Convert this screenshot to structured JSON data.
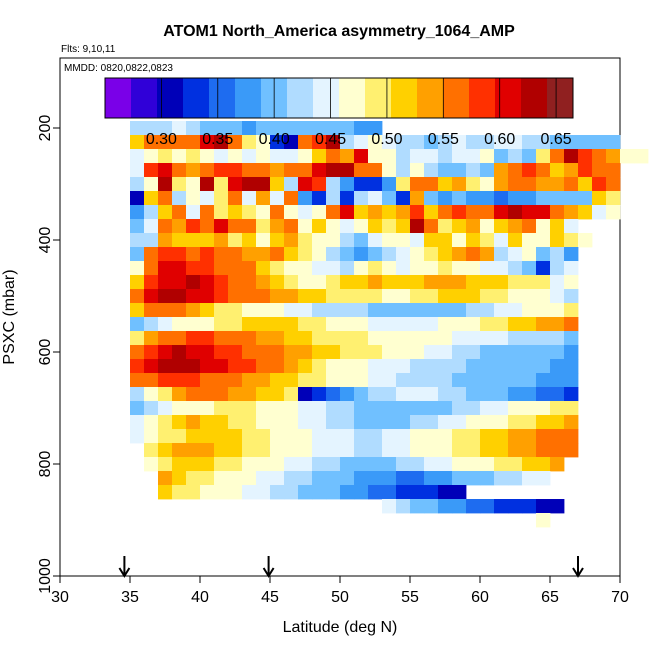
{
  "chart_data": {
    "type": "heatmap",
    "title": "ATOM1 North_America asymmetry_1064_AMP",
    "flights_label": "Flts: 9,10,11",
    "dates_label": "MMDD: 0820,0822,0823",
    "xlabel": "Latitude (deg N)",
    "ylabel": "PSXC (mbar)",
    "xlim": [
      30,
      70
    ],
    "ylim": [
      1000,
      75
    ],
    "x_ticks": [
      30,
      35,
      40,
      45,
      50,
      55,
      60,
      65,
      70
    ],
    "y_ticks": [
      200,
      400,
      600,
      800,
      1000
    ],
    "x_tick_labels": [
      "30",
      "35",
      "40",
      "45",
      "50",
      "55",
      "60",
      "65",
      "70"
    ],
    "y_tick_labels": [
      "200",
      "400",
      "600",
      "800",
      "1000"
    ],
    "colorbar": {
      "min": 0.25,
      "max": 0.665,
      "ticks": [
        0.3,
        0.35,
        0.4,
        0.45,
        0.5,
        0.55,
        0.6,
        0.65
      ],
      "tick_labels": [
        "0.30",
        "0.35",
        "0.40",
        "0.45",
        "0.50",
        "0.55",
        "0.60",
        "0.65"
      ],
      "colors": [
        "#7a00e8",
        "#3000d8",
        "#0000b8",
        "#0030e0",
        "#1e6cf0",
        "#3a9af8",
        "#70c0ff",
        "#b0dcff",
        "#e4f4ff",
        "#ffffd0",
        "#fff070",
        "#ffd000",
        "#ffa000",
        "#ff7000",
        "#ff3000",
        "#e00000",
        "#b00000",
        "#902020"
      ]
    },
    "arrows_latitude": [
      34.6,
      44.9,
      67.0
    ],
    "lat_bin_width": 1,
    "pressure_bin_height": 25,
    "grid": [
      {
        "p": 200,
        "lat0": 35,
        "v": [
          0.43,
          0.43,
          0.42,
          0.44,
          0.42,
          0.4,
          0.39,
          0.4,
          0.38,
          0.41,
          0.4,
          0.39,
          0.41,
          0.4,
          0.4,
          0.39,
          0.38,
          0.37
        ]
      },
      {
        "p": 225,
        "lat0": 35,
        "v": [
          0.52,
          0.55,
          0.56,
          0.55,
          0.57,
          0.6,
          0.62,
          0.57,
          0.5,
          0.48,
          0.33,
          0.31,
          0.55,
          0.58,
          0.62,
          0.43,
          0.44,
          0.46,
          0.44,
          0.42,
          0.42,
          0.4,
          0.43,
          0.44,
          0.43,
          0.42,
          0.44,
          0.45,
          0.43,
          0.42,
          0.41,
          0.4,
          0.4,
          0.39,
          0.39
        ]
      },
      {
        "p": 250,
        "lat0": 35,
        "v": [
          0.45,
          0.47,
          0.5,
          0.46,
          0.5,
          0.48,
          0.44,
          0.46,
          0.44,
          0.48,
          0.44,
          0.45,
          0.48,
          0.52,
          0.55,
          0.53,
          0.6,
          0.46,
          0.46,
          0.43,
          0.44,
          0.45,
          0.43,
          0.44,
          0.45,
          0.46,
          0.4,
          0.43,
          0.4,
          0.49,
          0.56,
          0.62,
          0.58,
          0.56,
          0.54,
          0.47,
          0.46
        ]
      },
      {
        "p": 275,
        "lat0": 35,
        "v": [
          0.44,
          0.58,
          0.61,
          0.55,
          0.53,
          0.56,
          0.58,
          0.58,
          0.55,
          0.56,
          0.54,
          0.56,
          0.55,
          0.6,
          0.62,
          0.63,
          0.57,
          0.55,
          0.47,
          0.43,
          0.46,
          0.42,
          0.4,
          0.41,
          0.42,
          0.41,
          0.54,
          0.56,
          0.58,
          0.55,
          0.52,
          0.54,
          0.58,
          0.56,
          0.56
        ]
      },
      {
        "p": 300,
        "lat0": 35,
        "v": [
          0.43,
          0.46,
          0.62,
          0.5,
          0.47,
          0.62,
          0.5,
          0.6,
          0.63,
          0.64,
          0.52,
          0.42,
          0.6,
          0.58,
          0.43,
          0.38,
          0.32,
          0.34,
          0.38,
          0.5,
          0.55,
          0.55,
          0.51,
          0.54,
          0.5,
          0.48,
          0.53,
          0.55,
          0.56,
          0.54,
          0.53,
          0.55,
          0.52,
          0.58,
          0.55
        ]
      },
      {
        "p": 325,
        "lat0": 35,
        "v": [
          0.3,
          0.52,
          0.55,
          0.42,
          0.48,
          0.44,
          0.5,
          0.56,
          0.44,
          0.53,
          0.44,
          0.55,
          0.38,
          0.33,
          0.43,
          0.34,
          0.42,
          0.45,
          0.4,
          0.33,
          0.53,
          0.4,
          0.38,
          0.39,
          0.37,
          0.38,
          0.35,
          0.38,
          0.38,
          0.39,
          0.41,
          0.4,
          0.4,
          0.52,
          0.5
        ]
      },
      {
        "p": 350,
        "lat0": 35,
        "v": [
          0.37,
          0.43,
          0.51,
          0.56,
          0.44,
          0.55,
          0.5,
          0.51,
          0.5,
          0.48,
          0.55,
          0.48,
          0.45,
          0.47,
          0.55,
          0.6,
          0.52,
          0.53,
          0.52,
          0.54,
          0.58,
          0.52,
          0.56,
          0.58,
          0.56,
          0.57,
          0.6,
          0.62,
          0.61,
          0.6,
          0.56,
          0.54,
          0.52,
          0.45,
          0.46
        ]
      },
      {
        "p": 375,
        "lat0": 35,
        "v": [
          0.4,
          0.44,
          0.56,
          0.53,
          0.58,
          0.56,
          0.6,
          0.56,
          0.55,
          0.5,
          0.53,
          0.56,
          0.47,
          0.51,
          0.46,
          0.44,
          0.46,
          0.52,
          0.5,
          0.51,
          0.62,
          0.55,
          0.5,
          0.51,
          0.54,
          0.48,
          0.52,
          0.53,
          0.55,
          0.48,
          0.52,
          0.44
        ]
      },
      {
        "p": 400,
        "lat0": 35,
        "v": [
          0.42,
          0.43,
          0.54,
          0.52,
          0.51,
          0.52,
          0.53,
          0.5,
          0.52,
          0.48,
          0.51,
          0.53,
          0.5,
          0.48,
          0.46,
          0.42,
          0.4,
          0.44,
          0.46,
          0.48,
          0.45,
          0.52,
          0.51,
          0.48,
          0.51,
          0.5,
          0.44,
          0.52,
          0.47,
          0.46,
          0.51,
          0.5,
          0.46
        ]
      },
      {
        "p": 425,
        "lat0": 35,
        "v": [
          0.4,
          0.55,
          0.58,
          0.59,
          0.56,
          0.58,
          0.57,
          0.55,
          0.53,
          0.54,
          0.56,
          0.52,
          0.5,
          0.47,
          0.43,
          0.41,
          0.38,
          0.4,
          0.42,
          0.44,
          0.48,
          0.5,
          0.52,
          0.53,
          0.55,
          0.54,
          0.42,
          0.44,
          0.46,
          0.4,
          0.42,
          0.38
        ]
      },
      {
        "p": 450,
        "lat0": 35,
        "v": [
          0.48,
          0.56,
          0.6,
          0.6,
          0.59,
          0.58,
          0.57,
          0.56,
          0.55,
          0.52,
          0.5,
          0.48,
          0.46,
          0.45,
          0.44,
          0.43,
          0.47,
          0.5,
          0.48,
          0.44,
          0.46,
          0.48,
          0.49,
          0.48,
          0.47,
          0.45,
          0.44,
          0.42,
          0.4,
          0.32,
          0.42,
          0.44
        ]
      },
      {
        "p": 475,
        "lat0": 35,
        "v": [
          0.52,
          0.58,
          0.6,
          0.61,
          0.62,
          0.6,
          0.59,
          0.57,
          0.55,
          0.53,
          0.51,
          0.49,
          0.47,
          0.48,
          0.5,
          0.51,
          0.52,
          0.53,
          0.52,
          0.51,
          0.52,
          0.53,
          0.54,
          0.53,
          0.52,
          0.52,
          0.51,
          0.5,
          0.5,
          0.49,
          0.45,
          0.47
        ]
      },
      {
        "p": 500,
        "lat0": 35,
        "v": [
          0.55,
          0.6,
          0.63,
          0.62,
          0.61,
          0.6,
          0.58,
          0.57,
          0.56,
          0.55,
          0.54,
          0.53,
          0.52,
          0.51,
          0.5,
          0.5,
          0.49,
          0.49,
          0.48,
          0.48,
          0.49,
          0.5,
          0.51,
          0.52,
          0.51,
          0.5,
          0.49,
          0.48,
          0.47,
          0.46,
          0.44,
          0.42
        ]
      },
      {
        "p": 525,
        "lat0": 35,
        "v": [
          0.52,
          0.55,
          0.56,
          0.55,
          0.54,
          0.52,
          0.5,
          0.49,
          0.48,
          0.47,
          0.46,
          0.45,
          0.44,
          0.43,
          0.43,
          0.42,
          0.42,
          0.41,
          0.41,
          0.4,
          0.4,
          0.39,
          0.4,
          0.41,
          0.42,
          0.43,
          0.44,
          0.45,
          0.46,
          0.47,
          0.48,
          0.49
        ]
      },
      {
        "p": 550,
        "lat0": 35,
        "v": [
          0.41,
          0.43,
          0.45,
          0.46,
          0.47,
          0.48,
          0.49,
          0.5,
          0.51,
          0.52,
          0.52,
          0.51,
          0.5,
          0.49,
          0.48,
          0.47,
          0.46,
          0.45,
          0.44,
          0.44,
          0.44,
          0.45,
          0.46,
          0.47,
          0.48,
          0.49,
          0.5,
          0.51,
          0.52,
          0.53,
          0.54,
          0.55
        ]
      },
      {
        "p": 575,
        "lat0": 35,
        "v": [
          0.5,
          0.54,
          0.56,
          0.57,
          0.58,
          0.58,
          0.57,
          0.56,
          0.55,
          0.54,
          0.53,
          0.52,
          0.51,
          0.5,
          0.5,
          0.49,
          0.49,
          0.48,
          0.48,
          0.47,
          0.47,
          0.46,
          0.46,
          0.45,
          0.45,
          0.44,
          0.44,
          0.43,
          0.43,
          0.42,
          0.42,
          0.41
        ]
      },
      {
        "p": 600,
        "lat0": 35,
        "v": [
          0.56,
          0.58,
          0.6,
          0.62,
          0.61,
          0.6,
          0.59,
          0.58,
          0.57,
          0.56,
          0.55,
          0.54,
          0.53,
          0.52,
          0.51,
          0.5,
          0.5,
          0.49,
          0.48,
          0.47,
          0.46,
          0.45,
          0.44,
          0.43,
          0.42,
          0.41,
          0.4,
          0.4,
          0.4,
          0.39,
          0.39,
          0.38
        ]
      },
      {
        "p": 625,
        "lat0": 35,
        "v": [
          0.58,
          0.6,
          0.62,
          0.63,
          0.62,
          0.61,
          0.6,
          0.59,
          0.58,
          0.57,
          0.56,
          0.54,
          0.52,
          0.5,
          0.48,
          0.47,
          0.46,
          0.45,
          0.44,
          0.44,
          0.43,
          0.43,
          0.42,
          0.42,
          0.41,
          0.41,
          0.4,
          0.4,
          0.39,
          0.39,
          0.38,
          0.38
        ]
      },
      {
        "p": 650,
        "lat0": 35,
        "v": [
          0.55,
          0.57,
          0.58,
          0.59,
          0.58,
          0.57,
          0.56,
          0.55,
          0.54,
          0.53,
          0.52,
          0.51,
          0.5,
          0.49,
          0.48,
          0.47,
          0.46,
          0.45,
          0.44,
          0.43,
          0.43,
          0.42,
          0.42,
          0.41,
          0.41,
          0.4,
          0.4,
          0.39,
          0.39,
          0.38,
          0.38,
          0.37
        ]
      },
      {
        "p": 675,
        "lat0": 35,
        "v": [
          0.43,
          0.46,
          0.5,
          0.53,
          0.55,
          0.56,
          0.55,
          0.54,
          0.53,
          0.52,
          0.51,
          0.5,
          0.3,
          0.32,
          0.35,
          0.38,
          0.4,
          0.42,
          0.43,
          0.44,
          0.45,
          0.44,
          0.43,
          0.42,
          0.41,
          0.4,
          0.39,
          0.38,
          0.37,
          0.36,
          0.35,
          0.34
        ]
      },
      {
        "p": 700,
        "lat0": 35,
        "v": [
          0.4,
          0.42,
          0.44,
          0.46,
          0.47,
          0.48,
          0.49,
          0.5,
          0.49,
          0.48,
          0.47,
          0.46,
          0.45,
          0.44,
          0.43,
          0.42,
          0.41,
          0.4,
          0.4,
          0.39,
          0.39,
          0.4,
          0.41,
          0.42,
          0.43,
          0.44,
          0.45,
          0.46,
          0.47,
          0.48,
          0.49,
          0.5
        ]
      },
      {
        "p": 725,
        "lat0": 35,
        "v": [
          0.44,
          0.47,
          0.5,
          0.52,
          0.53,
          0.52,
          0.51,
          0.5,
          0.49,
          0.48,
          0.47,
          0.46,
          0.45,
          0.44,
          0.43,
          0.42,
          0.41,
          0.4,
          0.4,
          0.41,
          0.42,
          0.43,
          0.44,
          0.45,
          0.46,
          0.47,
          0.48,
          0.49,
          0.5,
          0.51,
          0.52,
          0.53
        ]
      },
      {
        "p": 750,
        "lat0": 35,
        "v": [
          0.45,
          0.47,
          0.49,
          0.5,
          0.51,
          0.52,
          0.52,
          0.51,
          0.5,
          0.49,
          0.48,
          0.47,
          0.46,
          0.45,
          0.44,
          0.44,
          0.43,
          0.43,
          0.44,
          0.45,
          0.46,
          0.47,
          0.48,
          0.49,
          0.5,
          0.51,
          0.52,
          0.53,
          0.54,
          0.55,
          0.56,
          0.57
        ]
      },
      {
        "p": 775,
        "lat0": 36,
        "v": [
          0.5,
          0.52,
          0.53,
          0.54,
          0.53,
          0.52,
          0.51,
          0.5,
          0.49,
          0.48,
          0.47,
          0.46,
          0.45,
          0.44,
          0.44,
          0.43,
          0.43,
          0.44,
          0.45,
          0.46,
          0.47,
          0.48,
          0.49,
          0.5,
          0.51,
          0.52,
          0.53,
          0.54,
          0.55,
          0.56,
          0.57
        ]
      },
      {
        "p": 800,
        "lat0": 36,
        "v": [
          0.48,
          0.5,
          0.51,
          0.52,
          0.51,
          0.5,
          0.49,
          0.48,
          0.47,
          0.46,
          0.45,
          0.44,
          0.43,
          0.42,
          0.41,
          0.4,
          0.4,
          0.41,
          0.42,
          0.43,
          0.44,
          0.45,
          0.46,
          0.47,
          0.48,
          0.49,
          0.5,
          0.51,
          0.52,
          0.53
        ]
      },
      {
        "p": 825,
        "lat0": 37,
        "v": [
          0.54,
          0.52,
          0.5,
          0.49,
          0.48,
          0.47,
          0.46,
          0.45,
          0.44,
          0.43,
          0.42,
          0.41,
          0.4,
          0.39,
          0.38,
          0.37,
          0.37,
          0.36,
          0.36,
          0.37,
          0.38,
          0.39,
          0.4,
          0.41,
          0.42,
          0.43,
          0.44,
          0.45
        ]
      },
      {
        "p": 850,
        "lat0": 37,
        "v": [
          0.52,
          0.5,
          0.49,
          0.48,
          0.47,
          0.46,
          0.45,
          0.44,
          0.43,
          0.42,
          0.41,
          0.4,
          0.39,
          0.38,
          0.37,
          0.36,
          0.35,
          0.34,
          0.33,
          0.32,
          0.31,
          0.31
        ]
      },
      {
        "p": 875,
        "lat0": 53,
        "v": [
          0.44,
          0.42,
          0.4,
          0.39,
          0.38,
          0.37,
          0.36,
          0.35,
          0.34,
          0.33,
          0.32,
          0.31,
          0.3
        ]
      },
      {
        "p": 900,
        "lat0": 64,
        "v": [
          0.46
        ]
      }
    ]
  }
}
